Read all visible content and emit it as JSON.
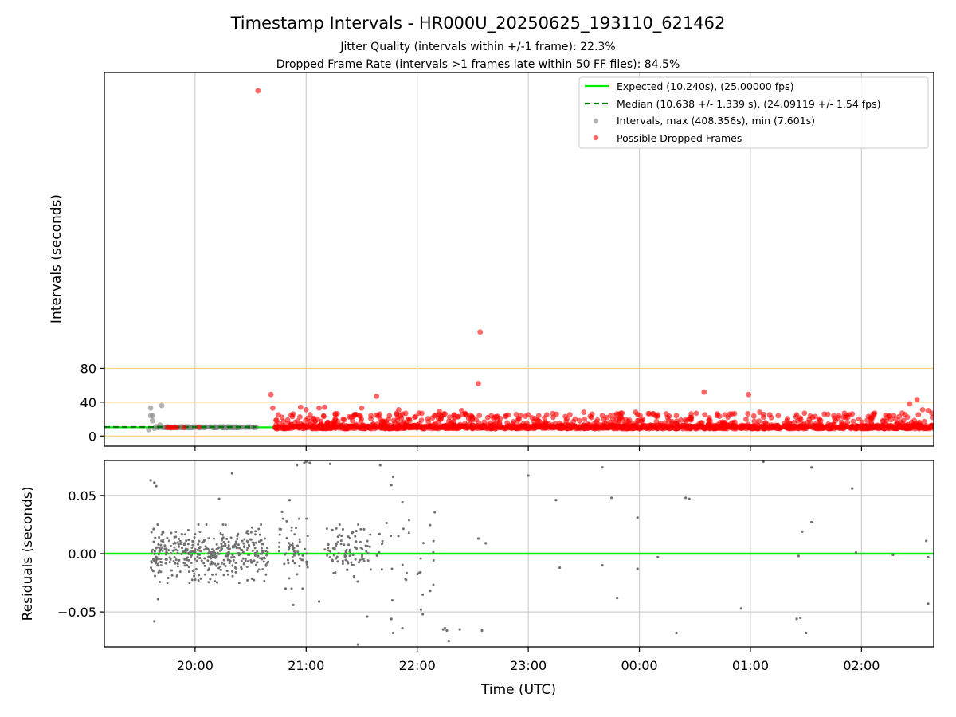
{
  "chart_data": [
    {
      "type": "scatter",
      "title": "Timestamp Intervals - HR000U_20250625_193110_621462",
      "subtitle_lines": [
        "Jitter Quality (intervals within +/-1 frame): 22.3%",
        "Dropped Frame Rate (intervals >1 frames late within 50 FF files): 84.5%"
      ],
      "ylabel": "Intervals (seconds)",
      "xlim": [
        "19:11",
        "02:39"
      ],
      "ylim": [
        -12,
        430
      ],
      "ytick_values": [
        0,
        40,
        80
      ],
      "ytick_labels": [
        "0",
        "40",
        "80"
      ],
      "xtick_labels": [
        "20:00",
        "21:00",
        "22:00",
        "23:00",
        "00:00",
        "01:00",
        "02:00"
      ],
      "horizontal_lines": [
        0,
        40,
        80
      ],
      "horizontal_line_color": "#ffd27f",
      "legend_position": "upper right",
      "legend": [
        {
          "label": "Expected (10.240s), (25.00000 fps)",
          "kind": "line",
          "color": "#00ee00"
        },
        {
          "label": "Median (10.638 +/- 1.339 s), (24.09119 +/- 1.54 fps)",
          "kind": "dashed",
          "color": "#007700"
        },
        {
          "label": "Intervals, max (408.356s), min (7.601s)",
          "kind": "point",
          "color": "#808080"
        },
        {
          "label": "Possible Dropped Frames",
          "kind": "point",
          "color": "#ff0000"
        }
      ],
      "series": [
        {
          "name": "Expected (10.240s), (25.00000 fps)",
          "kind": "hline",
          "y": 10.24,
          "x_range": [
            "19:11",
            "02:39"
          ]
        },
        {
          "name": "Median (10.638 +/- 1.339 s), (24.09119 +/- 1.54 fps)",
          "kind": "hline",
          "y": 10.638,
          "x_range": [
            "19:11",
            "20:33"
          ]
        },
        {
          "name": "Intervals, max (408.356s), min (7.601s)",
          "points": [
            [
              "19:35",
              7.6
            ],
            [
              "19:36",
              24
            ],
            [
              "19:36",
              33
            ],
            [
              "19:37",
              18
            ],
            [
              "19:37",
              24
            ],
            [
              "19:38",
              9
            ],
            [
              "19:39",
              11
            ],
            [
              "19:40",
              10
            ],
            [
              "19:41",
              13
            ],
            [
              "19:42",
              36
            ],
            [
              "19:44",
              10
            ],
            [
              "19:47",
              9.5
            ],
            [
              "19:53",
              11
            ],
            [
              "19:55",
              11
            ],
            [
              "19:58",
              10
            ],
            [
              "20:00",
              10.5
            ],
            [
              "20:05",
              10
            ],
            [
              "20:10",
              10.6
            ],
            [
              "20:15",
              10.2
            ],
            [
              "20:20",
              10.8
            ],
            [
              "20:25",
              10.4
            ],
            [
              "20:30",
              10.6
            ],
            [
              "20:33",
              10.3
            ]
          ]
        },
        {
          "name": "Possible Dropped Frames",
          "points": [
            [
              "19:45",
              10
            ],
            [
              "19:46",
              10
            ],
            [
              "19:47",
              10
            ],
            [
              "19:48",
              10
            ],
            [
              "19:49",
              10
            ],
            [
              "19:50",
              10
            ],
            [
              "19:54",
              10
            ],
            [
              "20:02",
              10.5
            ],
            [
              "20:34",
              408.4
            ],
            [
              "20:41",
              49
            ],
            [
              "20:42",
              33
            ],
            [
              "20:45",
              25
            ],
            [
              "20:47",
              22
            ],
            [
              "20:50",
              19
            ],
            [
              "20:53",
              26
            ],
            [
              "20:57",
              34
            ],
            [
              "21:00",
              31
            ],
            [
              "21:04",
              21
            ],
            [
              "21:07",
              33
            ],
            [
              "21:10",
              34
            ],
            [
              "21:15",
              17
            ],
            [
              "21:20",
              20
            ],
            [
              "21:25",
              18
            ],
            [
              "21:30",
              33
            ],
            [
              "21:35",
              24
            ],
            [
              "21:38",
              47
            ],
            [
              "21:45",
              24
            ],
            [
              "21:50",
              31
            ],
            [
              "21:55",
              20
            ],
            [
              "22:01",
              27
            ],
            [
              "22:06",
              17
            ],
            [
              "22:12",
              29
            ],
            [
              "22:15",
              26
            ],
            [
              "22:20",
              25
            ],
            [
              "22:24",
              30
            ],
            [
              "22:30",
              22
            ],
            [
              "22:33",
              62
            ],
            [
              "22:34",
              123
            ],
            [
              "22:40",
              24
            ],
            [
              "22:48",
              24
            ],
            [
              "22:55",
              20
            ],
            [
              "23:00",
              25
            ],
            [
              "23:10",
              25
            ],
            [
              "23:20",
              23
            ],
            [
              "23:30",
              28
            ],
            [
              "23:40",
              24
            ],
            [
              "23:50",
              23
            ],
            [
              "23:58",
              28
            ],
            [
              "00:10",
              25
            ],
            [
              "00:20",
              24
            ],
            [
              "00:28",
              26
            ],
            [
              "00:35",
              52
            ],
            [
              "00:42",
              24
            ],
            [
              "00:50",
              26
            ],
            [
              "00:59",
              49
            ],
            [
              "01:05",
              28
            ],
            [
              "01:15",
              24
            ],
            [
              "01:25",
              25
            ],
            [
              "01:35",
              23
            ],
            [
              "01:45",
              24
            ],
            [
              "01:55",
              26
            ],
            [
              "02:05",
              22
            ],
            [
              "02:15",
              24
            ],
            [
              "02:22",
              27
            ],
            [
              "02:26",
              38
            ],
            [
              "02:30",
              43
            ],
            [
              "02:33",
              31
            ],
            [
              "02:36",
              30
            ],
            [
              "02:38",
              27
            ]
          ],
          "dense_band": {
            "x_range": [
              "20:43",
              "02:39"
            ],
            "y_range": [
              8.5,
              12
            ],
            "note_count": 1200
          },
          "scattered_band": {
            "x_range": [
              "20:43",
              "02:39"
            ],
            "y_range": [
              12,
              27
            ]
          }
        }
      ]
    },
    {
      "type": "scatter",
      "ylabel": "Residuals (seconds)",
      "xlabel": "Time (UTC)",
      "xlim": [
        "19:11",
        "02:39"
      ],
      "ylim": [
        -0.08,
        0.08
      ],
      "ytick_values": [
        0.05,
        0.0,
        -0.05
      ],
      "ytick_labels": [
        "0.05",
        "0.00",
        "−0.05"
      ],
      "xtick_labels": [
        "20:00",
        "21:00",
        "22:00",
        "23:00",
        "00:00",
        "01:00",
        "02:00"
      ],
      "grid": true,
      "series": [
        {
          "kind": "hline",
          "y": 0.0,
          "color": "#00ee00"
        },
        {
          "kind": "points",
          "color": "#707070",
          "clusters": [
            {
              "x_range": [
                "19:36",
                "20:40"
              ],
              "y_spread": 0.025,
              "count": 420
            },
            {
              "x_range": [
                "20:45",
                "21:02"
              ],
              "y_spread": 0.03,
              "count": 60
            },
            {
              "x_range": [
                "21:10",
                "21:35"
              ],
              "y_spread": 0.025,
              "count": 90
            },
            {
              "x_range": [
                "21:38",
                "22:10"
              ],
              "y_spread": 0.04,
              "count": 30
            }
          ],
          "points": [
            [
              "19:36",
              0.063
            ],
            [
              "19:38",
              0.061
            ],
            [
              "19:39",
              0.058
            ],
            [
              "19:38",
              -0.058
            ],
            [
              "19:40",
              -0.039
            ],
            [
              "20:20",
              0.069
            ],
            [
              "20:13",
              0.047
            ],
            [
              "20:55",
              0.076
            ],
            [
              "20:59",
              0.078
            ],
            [
              "21:00",
              0.079
            ],
            [
              "21:02",
              0.078
            ],
            [
              "21:13",
              0.077
            ],
            [
              "20:47",
              0.036
            ],
            [
              "20:51",
              0.046
            ],
            [
              "21:40",
              0.076
            ],
            [
              "21:47",
              0.066
            ],
            [
              "21:46",
              0.059
            ],
            [
              "21:52",
              0.044
            ],
            [
              "21:47",
              -0.068
            ],
            [
              "21:46",
              -0.056
            ],
            [
              "21:52",
              -0.064
            ],
            [
              "21:33",
              -0.054
            ],
            [
              "21:28",
              -0.078
            ],
            [
              "21:07",
              -0.041
            ],
            [
              "20:53",
              -0.044
            ],
            [
              "22:02",
              -0.048
            ],
            [
              "22:03",
              -0.052
            ],
            [
              "22:07",
              -0.032
            ],
            [
              "22:14",
              -0.065
            ],
            [
              "22:15",
              -0.064
            ],
            [
              "22:16",
              -0.066
            ],
            [
              "22:23",
              -0.065
            ],
            [
              "22:35",
              -0.066
            ],
            [
              "22:33",
              0.013
            ],
            [
              "22:37",
              0.009
            ],
            [
              "22:17",
              -0.075
            ],
            [
              "23:00",
              0.067
            ],
            [
              "23:15",
              0.046
            ],
            [
              "23:17",
              -0.012
            ],
            [
              "23:40",
              0.074
            ],
            [
              "23:45",
              0.048
            ],
            [
              "23:40",
              -0.01
            ],
            [
              "23:48",
              -0.038
            ],
            [
              "23:59",
              0.031
            ],
            [
              "23:59",
              -0.013
            ],
            [
              "00:10",
              -0.003
            ],
            [
              "00:20",
              -0.068
            ],
            [
              "00:25",
              0.048
            ],
            [
              "00:27",
              0.047
            ],
            [
              "00:55",
              -0.047
            ],
            [
              "01:07",
              0.079
            ],
            [
              "01:25",
              -0.056
            ],
            [
              "01:27",
              -0.055
            ],
            [
              "01:26",
              -0.002
            ],
            [
              "01:28",
              0.019
            ],
            [
              "01:33",
              0.027
            ],
            [
              "01:33",
              0.074
            ],
            [
              "01:30",
              -0.068
            ],
            [
              "01:55",
              0.056
            ],
            [
              "01:57",
              0.001
            ],
            [
              "02:17",
              -0.001
            ],
            [
              "02:35",
              0.011
            ],
            [
              "02:36",
              -0.003
            ],
            [
              "02:36",
              -0.043
            ]
          ]
        }
      ]
    }
  ]
}
